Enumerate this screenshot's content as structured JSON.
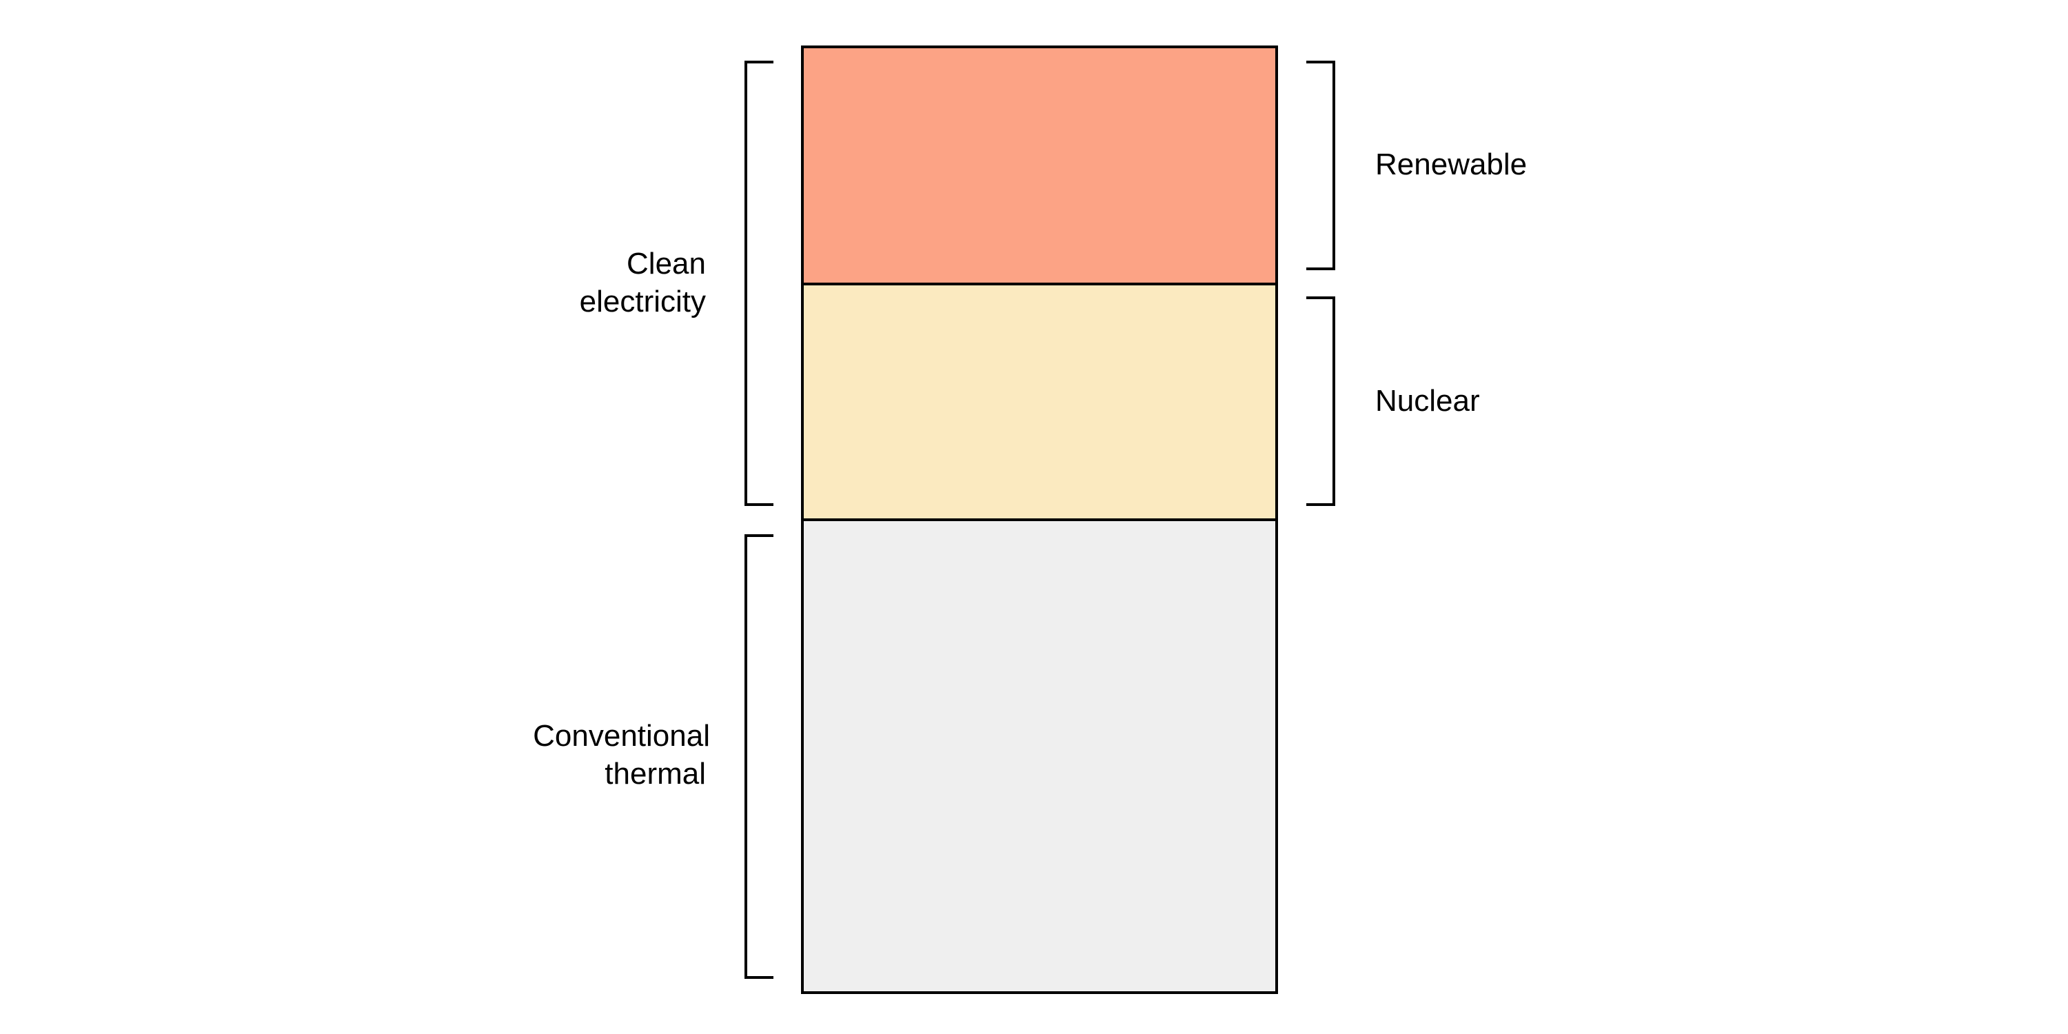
{
  "segments": [
    {
      "id": "renewable",
      "label": "Renewable",
      "color": "#FCA385"
    },
    {
      "id": "nuclear",
      "label": "Nuclear",
      "color": "#FBEAC0"
    },
    {
      "id": "conventional",
      "color": "#EFEFEF"
    }
  ],
  "groups": {
    "clean": {
      "line1": "Clean",
      "line2": "electricity"
    },
    "conventional": {
      "line1": "Conventional",
      "line2": "thermal"
    }
  }
}
